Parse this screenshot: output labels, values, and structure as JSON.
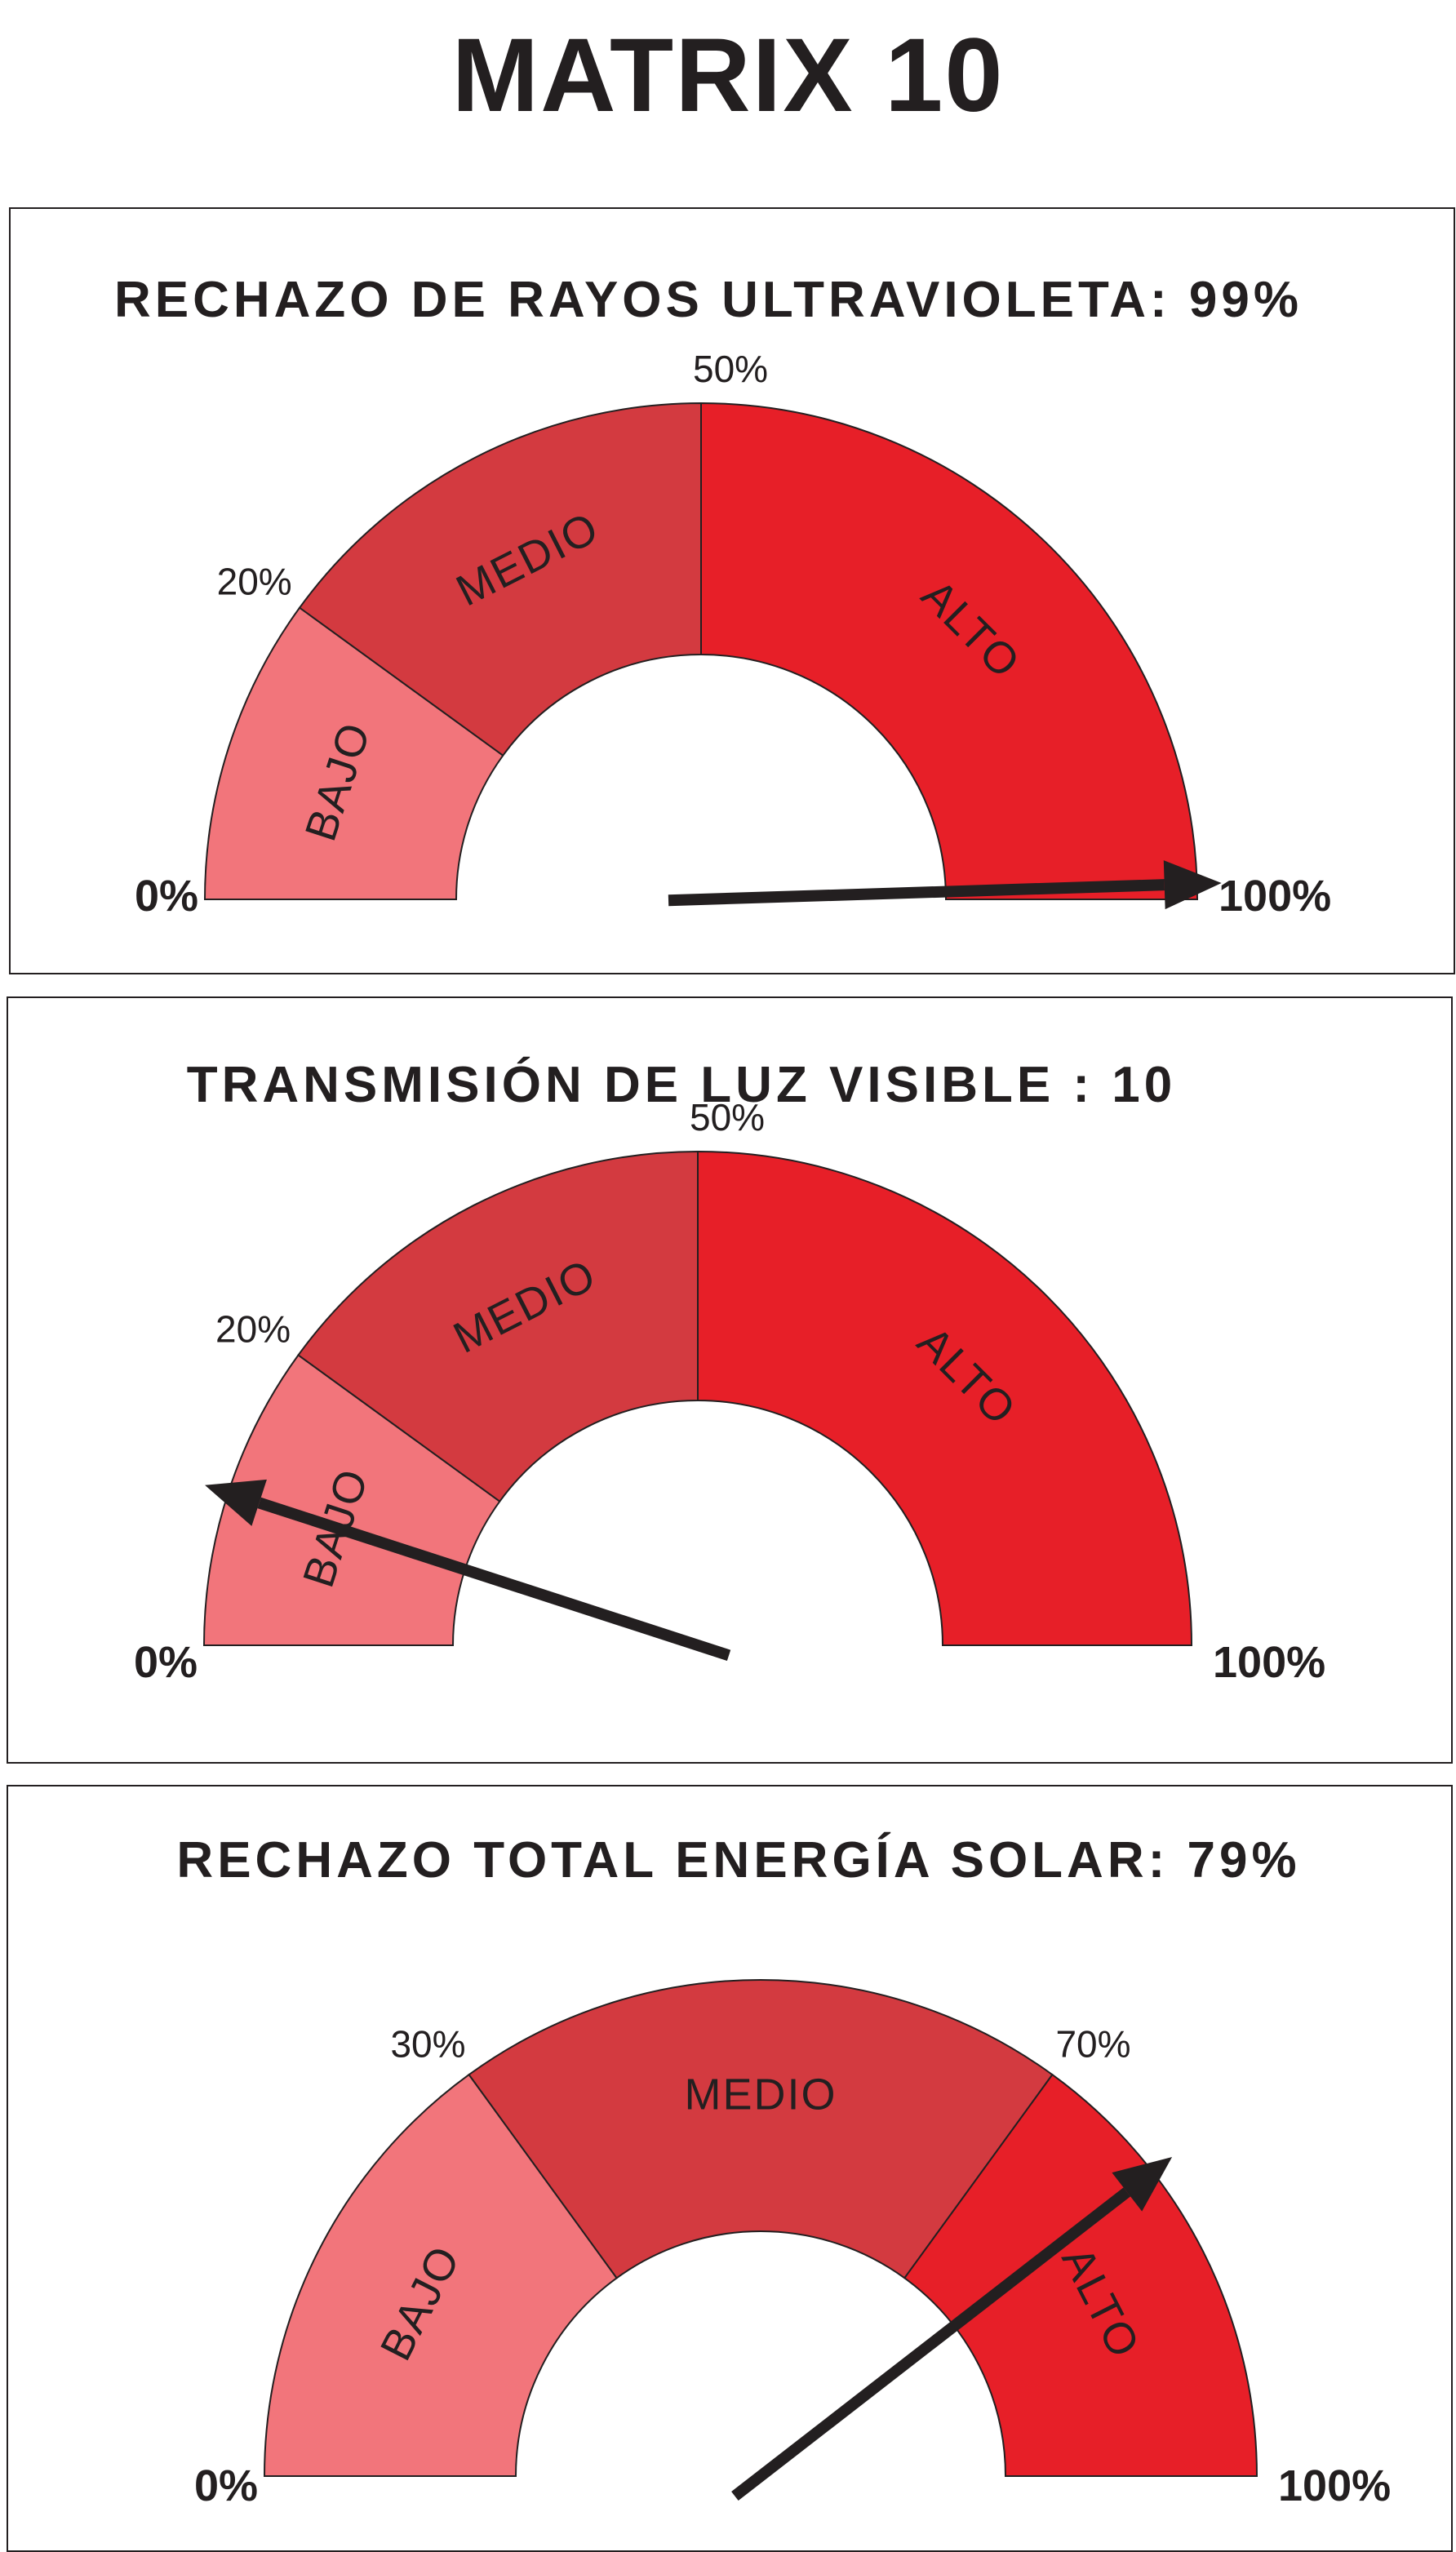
{
  "page": {
    "title": "MATRIX 10"
  },
  "colors": {
    "low": "#f2757b",
    "mid": "#d33a40",
    "high": "#e71f28",
    "ink": "#231f20",
    "background": "#ffffff"
  },
  "chart_data": [
    {
      "type": "gauge",
      "title": "RECHAZO DE RAYOS ULTRAVIOLETA: 99%",
      "value": 99,
      "range": [
        0,
        100
      ],
      "min_label": "0%",
      "max_label": "100%",
      "bands": [
        {
          "name": "BAJO",
          "from": 0,
          "to": 20
        },
        {
          "name": "MEDIO",
          "from": 20,
          "to": 50
        },
        {
          "name": "ALTO",
          "from": 50,
          "to": 100
        }
      ],
      "threshold_labels": [
        "20%",
        "50%"
      ]
    },
    {
      "type": "gauge",
      "title": "TRANSMISIÓN DE LUZ VISIBLE : 10",
      "value": 10,
      "range": [
        0,
        100
      ],
      "min_label": "0%",
      "max_label": "100%",
      "bands": [
        {
          "name": "BAJO",
          "from": 0,
          "to": 20
        },
        {
          "name": "MEDIO",
          "from": 20,
          "to": 50
        },
        {
          "name": "ALTO",
          "from": 50,
          "to": 100
        }
      ],
      "threshold_labels": [
        "20%",
        "50%"
      ]
    },
    {
      "type": "gauge",
      "title": "RECHAZO TOTAL ENERGÍA SOLAR: 79%",
      "value": 79,
      "range": [
        0,
        100
      ],
      "min_label": "0%",
      "max_label": "100%",
      "bands": [
        {
          "name": "BAJO",
          "from": 0,
          "to": 30
        },
        {
          "name": "MEDIO",
          "from": 30,
          "to": 70
        },
        {
          "name": "ALTO",
          "from": 70,
          "to": 100
        }
      ],
      "threshold_labels": [
        "30%",
        "70%"
      ]
    }
  ]
}
